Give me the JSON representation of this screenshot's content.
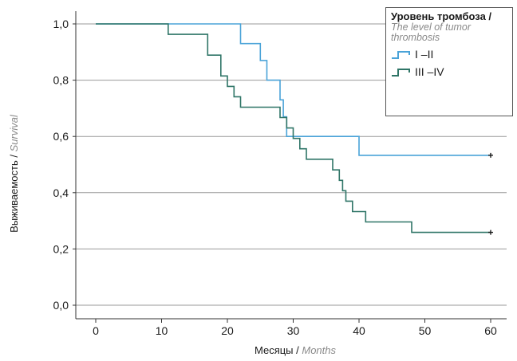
{
  "chart_data": {
    "type": "line",
    "subtype": "kaplan-meier step",
    "xlabel": "Месяцы",
    "xlabel_en": "Months",
    "ylabel": "Выживаемость",
    "ylabel_en": "Survival",
    "xlim": [
      0,
      60
    ],
    "ylim": [
      0,
      1.0
    ],
    "x_ticks": [
      "0",
      "10",
      "20",
      "30",
      "40",
      "50",
      "60"
    ],
    "y_ticks": [
      "0,0",
      "0,2",
      "0,4",
      "0,6",
      "0,8",
      "1,0"
    ],
    "grid": "horizontal",
    "legend": {
      "title": "Уровень тромбоза /",
      "subtitle": "The level of tumor thrombosis",
      "placement": "top-right"
    },
    "series": [
      {
        "name": "I –II",
        "color": "#4aa3d8",
        "censored_end": true,
        "points": [
          [
            0,
            1.0
          ],
          [
            22,
            1.0
          ],
          [
            22,
            0.93
          ],
          [
            25,
            0.93
          ],
          [
            25,
            0.87
          ],
          [
            26,
            0.87
          ],
          [
            26,
            0.8
          ],
          [
            28,
            0.8
          ],
          [
            28,
            0.73
          ],
          [
            28.5,
            0.73
          ],
          [
            28.5,
            0.67
          ],
          [
            29,
            0.67
          ],
          [
            29,
            0.6
          ],
          [
            40,
            0.6
          ],
          [
            40,
            0.533
          ],
          [
            60,
            0.533
          ]
        ]
      },
      {
        "name": "III –IV",
        "color": "#2f7567",
        "censored_end": true,
        "points": [
          [
            0,
            1.0
          ],
          [
            11,
            1.0
          ],
          [
            11,
            0.963
          ],
          [
            17,
            0.963
          ],
          [
            17,
            0.889
          ],
          [
            19,
            0.889
          ],
          [
            19,
            0.815
          ],
          [
            20,
            0.815
          ],
          [
            20,
            0.778
          ],
          [
            21,
            0.778
          ],
          [
            21,
            0.741
          ],
          [
            22,
            0.741
          ],
          [
            22,
            0.704
          ],
          [
            28,
            0.704
          ],
          [
            28,
            0.667
          ],
          [
            29,
            0.667
          ],
          [
            29,
            0.63
          ],
          [
            30,
            0.63
          ],
          [
            30,
            0.593
          ],
          [
            31,
            0.593
          ],
          [
            31,
            0.556
          ],
          [
            32,
            0.556
          ],
          [
            32,
            0.519
          ],
          [
            36,
            0.519
          ],
          [
            36,
            0.481
          ],
          [
            37,
            0.481
          ],
          [
            37,
            0.444
          ],
          [
            37.5,
            0.444
          ],
          [
            37.5,
            0.407
          ],
          [
            38,
            0.407
          ],
          [
            38,
            0.37
          ],
          [
            39,
            0.37
          ],
          [
            39,
            0.333
          ],
          [
            41,
            0.333
          ],
          [
            41,
            0.296
          ],
          [
            48,
            0.296
          ],
          [
            48,
            0.259
          ],
          [
            60,
            0.259
          ]
        ]
      }
    ]
  }
}
